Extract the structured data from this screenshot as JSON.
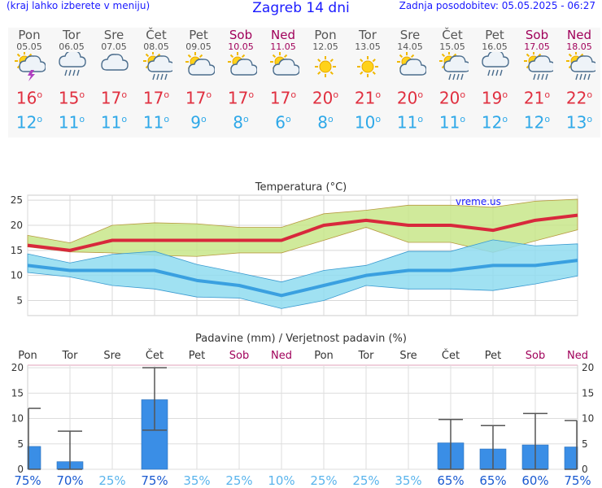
{
  "header": {
    "left": "(kraj lahko izberete v meniju)",
    "title": "Zagreb 14 dni",
    "right": "Zadnja posodobitev: 05.05.2025 - 06:27"
  },
  "days": [
    {
      "name": "Pon",
      "date": "05.05",
      "icon": "storm-icon",
      "max": "16",
      "min": "12",
      "weekend": false
    },
    {
      "name": "Tor",
      "date": "06.05",
      "icon": "rain-cloud-icon",
      "max": "15",
      "min": "11",
      "weekend": false
    },
    {
      "name": "Sre",
      "date": "07.05",
      "icon": "cloud-icon",
      "max": "17",
      "min": "11",
      "weekend": false
    },
    {
      "name": "Čet",
      "date": "08.05",
      "icon": "sun-rain-icon",
      "max": "17",
      "min": "11",
      "weekend": false
    },
    {
      "name": "Pet",
      "date": "09.05",
      "icon": "sun-cloud-icon",
      "max": "17",
      "min": "9",
      "weekend": false
    },
    {
      "name": "Sob",
      "date": "10.05",
      "icon": "sun-cloud-icon",
      "max": "17",
      "min": "8",
      "weekend": true
    },
    {
      "name": "Ned",
      "date": "11.05",
      "icon": "sun-cloud-icon",
      "max": "17",
      "min": "6",
      "weekend": true
    },
    {
      "name": "Pon",
      "date": "12.05",
      "icon": "sun-icon",
      "max": "20",
      "min": "8",
      "weekend": false
    },
    {
      "name": "Tor",
      "date": "13.05",
      "icon": "sun-icon",
      "max": "21",
      "min": "10",
      "weekend": false
    },
    {
      "name": "Sre",
      "date": "14.05",
      "icon": "sun-cloud-icon",
      "max": "20",
      "min": "11",
      "weekend": false
    },
    {
      "name": "Čet",
      "date": "15.05",
      "icon": "sun-rain-icon",
      "max": "20",
      "min": "11",
      "weekend": false
    },
    {
      "name": "Pet",
      "date": "16.05",
      "icon": "rain-cloud-icon",
      "max": "19",
      "min": "12",
      "weekend": false
    },
    {
      "name": "Sob",
      "date": "17.05",
      "icon": "sun-rain-icon",
      "max": "21",
      "min": "12",
      "weekend": true
    },
    {
      "name": "Ned",
      "date": "18.05",
      "icon": "sun-rain-icon",
      "max": "22",
      "min": "13",
      "weekend": true
    }
  ],
  "degree_symbol": "o",
  "colors": {
    "header_text": "#1a1aff",
    "weekend": "#a0005a",
    "max_line": "#d8283c",
    "min_line": "#3aa0e0",
    "max_band": "#c8e68a",
    "min_band": "#8fdcf0",
    "bar": "#3a8ee6"
  },
  "chart_data": [
    {
      "type": "line",
      "title": "Temperatura (°C)",
      "watermark": "vreme.us",
      "ylim": [
        2,
        26
      ],
      "yticks": [
        5,
        10,
        15,
        20,
        25
      ],
      "grid": true,
      "series": [
        {
          "values": [
            16,
            15,
            17,
            17,
            17,
            17,
            17,
            20,
            21,
            20,
            20,
            19,
            21,
            22
          ]
        },
        {
          "values": [
            12,
            11,
            11,
            11,
            9,
            8,
            6,
            8,
            10,
            11,
            11,
            12,
            12,
            13
          ]
        }
      ],
      "max_band": {
        "upper": [
          18,
          16.5,
          20,
          20.5,
          20.3,
          19.6,
          19.6,
          22.3,
          23,
          24,
          24,
          23.6,
          24.8,
          25.2
        ],
        "lower": [
          15.7,
          14.7,
          14.5,
          14,
          13.8,
          14.5,
          14.5,
          17,
          19.6,
          16.6,
          16.6,
          14.6,
          16.9,
          19.1
        ]
      },
      "min_band": {
        "upper": [
          14.3,
          12.5,
          14.2,
          14.8,
          12.2,
          10.5,
          8.7,
          11,
          12,
          14.8,
          14.8,
          17.1,
          15.9,
          16.3
        ],
        "lower": [
          10.6,
          9.7,
          8,
          7.3,
          5.7,
          5.5,
          3.4,
          5,
          8,
          7.3,
          7.3,
          7,
          8.3,
          9.9
        ]
      }
    },
    {
      "type": "bar",
      "title": "Padavine (mm) / Verjetnost padavin (%)",
      "categories": [
        "Pon",
        "Tor",
        "Sre",
        "Čet",
        "Pet",
        "Sob",
        "Ned",
        "Pon",
        "Tor",
        "Sre",
        "Čet",
        "Pet",
        "Sob",
        "Ned"
      ],
      "values": [
        4.5,
        1.5,
        0,
        13.7,
        0,
        0,
        0,
        0,
        0,
        0,
        5.2,
        4,
        4.8,
        4.4
      ],
      "error_low": [
        0,
        0,
        null,
        7.7,
        null,
        null,
        null,
        null,
        null,
        null,
        0,
        0,
        0,
        0
      ],
      "error_high": [
        12,
        7.5,
        null,
        20,
        null,
        null,
        null,
        null,
        null,
        null,
        9.8,
        8.6,
        11,
        9.6
      ],
      "probability": [
        "75%",
        "70%",
        "25%",
        "75%",
        "35%",
        "25%",
        "10%",
        "25%",
        "25%",
        "35%",
        "65%",
        "65%",
        "60%",
        "75%"
      ],
      "ylim": [
        0,
        20.5
      ],
      "yticks": [
        0,
        5,
        10,
        15,
        20
      ]
    }
  ]
}
